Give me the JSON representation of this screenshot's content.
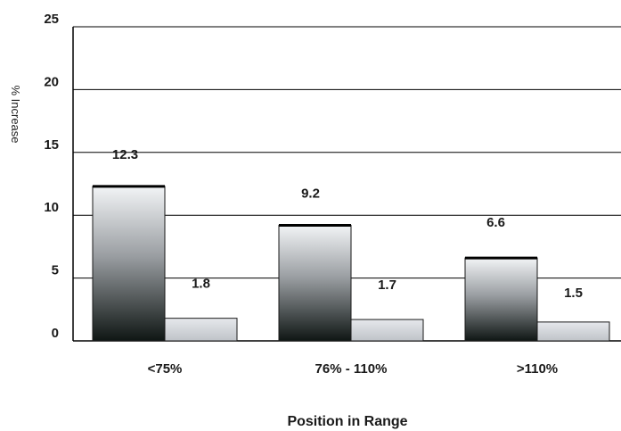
{
  "chart_data": {
    "type": "bar",
    "categories": [
      "<75%",
      "76% - 110%",
      ">110%"
    ],
    "series": [
      {
        "values": [
          12.3,
          9.2,
          6.6
        ],
        "color": "#2a2a2a"
      },
      {
        "values": [
          1.8,
          1.7,
          1.5
        ],
        "color": "#c8ccd2"
      }
    ],
    "data_labels": [
      [
        "12.3",
        "9.2",
        "6.6"
      ],
      [
        "1.8",
        "1.7",
        "1.5"
      ]
    ],
    "xlabel": "Position in Range",
    "ylabel": "% Increase",
    "ylim": [
      0,
      25
    ],
    "yticks": [
      "0",
      "5",
      "10",
      "15",
      "20",
      "25"
    ],
    "grid": true,
    "legend": "none"
  }
}
